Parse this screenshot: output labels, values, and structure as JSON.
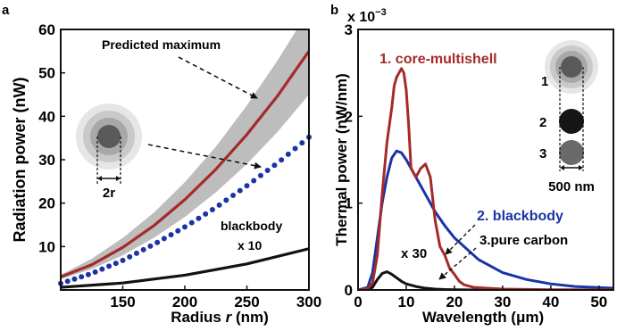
{
  "chart_data": [
    {
      "panel": "a",
      "type": "line",
      "xlabel_prefix": "Radius ",
      "xlabel_var": "r",
      "xlabel_suffix": " (nm)",
      "ylabel": "Radiation power (nW)",
      "xlim": [
        100,
        300
      ],
      "ylim": [
        0,
        60
      ],
      "xticks": [
        150,
        200,
        250,
        300
      ],
      "yticks": [
        10,
        20,
        30,
        40,
        50,
        60
      ],
      "band": {
        "x": [
          100,
          125,
          150,
          175,
          200,
          225,
          250,
          275,
          300
        ],
        "lower": [
          2.5,
          4.8,
          8.0,
          12.0,
          16.8,
          22.5,
          29.0,
          36.5,
          45.0
        ],
        "upper": [
          3.5,
          7.2,
          12.0,
          17.8,
          24.8,
          33.0,
          42.5,
          53.0,
          64.5
        ]
      },
      "series": [
        {
          "key": "core",
          "style": "solid",
          "color": "#a52a2a",
          "x": [
            100,
            125,
            150,
            175,
            200,
            225,
            250,
            275,
            300
          ],
          "y": [
            3.0,
            5.8,
            9.8,
            14.8,
            20.8,
            27.8,
            35.8,
            44.8,
            55.0
          ]
        },
        {
          "key": "blackbody",
          "style": "dotted",
          "color": "#1a33a6",
          "x": [
            100,
            125,
            150,
            175,
            200,
            225,
            250,
            275,
            300
          ],
          "y": [
            1.5,
            3.8,
            6.8,
            10.5,
            14.5,
            19.0,
            24.0,
            29.3,
            35.2
          ]
        },
        {
          "key": "scaled",
          "style": "solid",
          "color": "#111111",
          "x": [
            100,
            150,
            200,
            250,
            300
          ],
          "y": [
            0.6,
            1.6,
            3.4,
            6.0,
            9.5
          ]
        }
      ],
      "annotations": {
        "predicted": "Predicted maximum",
        "blackbody": "blackbody",
        "scale": "x 10",
        "radius": "2r"
      }
    },
    {
      "panel": "b",
      "type": "line",
      "xlabel_prefix": "Wavelength (",
      "xlabel_unit": "μm",
      "xlabel_suffix": ")",
      "ylabel": "Thermal power (nW/nm)",
      "xlim": [
        0,
        53
      ],
      "ylim": [
        0,
        0.003
      ],
      "ymult": "x 10",
      "yexp": "−3",
      "xticks": [
        0,
        10,
        20,
        30,
        40,
        50
      ],
      "yticks": [
        0,
        1,
        2,
        3
      ],
      "series": [
        {
          "key": "core-multishell",
          "color": "#a52a2a",
          "x": [
            0,
            2,
            3,
            4,
            5,
            6,
            7,
            7.5,
            8,
            8.5,
            9,
            9.5,
            10,
            10.5,
            11,
            12,
            13,
            14,
            15,
            16,
            17,
            18,
            19,
            20,
            21,
            22,
            24,
            30,
            40,
            53
          ],
          "y": [
            0,
            2e-05,
            8e-05,
            0.0004,
            0.0011,
            0.0017,
            0.0021,
            0.00235,
            0.00245,
            0.0025,
            0.00255,
            0.0025,
            0.0023,
            0.0019,
            0.0014,
            0.0013,
            0.0014,
            0.00145,
            0.0013,
            0.0008,
            0.0005,
            0.0004,
            0.00025,
            0.00018,
            0.0001,
            6e-05,
            3e-05,
            1e-05,
            3e-06,
            1e-06
          ]
        },
        {
          "key": "blackbody",
          "color": "#1a33a6",
          "x": [
            0,
            2,
            3,
            4,
            5,
            6,
            7,
            8,
            9,
            10,
            12,
            14,
            16,
            18,
            20,
            25,
            30,
            35,
            40,
            45,
            53
          ],
          "y": [
            0,
            3e-05,
            0.0002,
            0.0006,
            0.001,
            0.0013,
            0.00152,
            0.0016,
            0.00158,
            0.0015,
            0.0013,
            0.0011,
            0.0009,
            0.00074,
            0.0006,
            0.00035,
            0.0002,
            0.00012,
            7e-05,
            4e-05,
            2e-05
          ]
        },
        {
          "key": "pure-carbon",
          "color": "#111111",
          "x": [
            0,
            2,
            3,
            4,
            5,
            6,
            7,
            8,
            9,
            10,
            12,
            14,
            16,
            18,
            20,
            25,
            30
          ],
          "y": [
            0,
            5e-06,
            3e-05,
            0.00012,
            0.00019,
            0.00021,
            0.00018,
            0.00014,
            0.0001,
            7e-05,
            4e-05,
            2e-05,
            1e-05,
            5e-06,
            2e-06,
            0,
            0
          ]
        }
      ],
      "annotations": {
        "l1": "1. core-multishell",
        "l2": "2. blackbody",
        "l3": "3.pure carbon",
        "scale": "x 30",
        "n1": "1",
        "n2": "2",
        "n3": "3",
        "size": "500 nm"
      }
    }
  ],
  "panel_labels": {
    "a": "a",
    "b": "b"
  },
  "colors": {
    "red": "#a52a2a",
    "blue": "#1a33a6",
    "black": "#111111",
    "band": "#bdbdbd"
  }
}
